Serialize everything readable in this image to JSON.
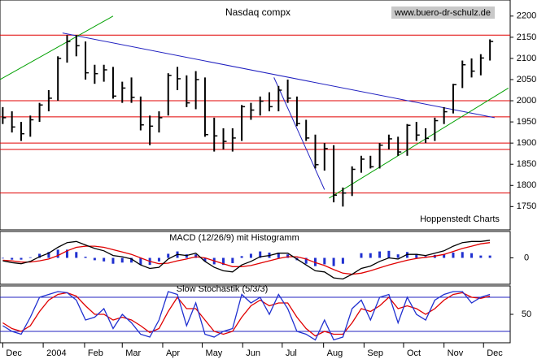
{
  "chart_data": [
    {
      "type": "ohlc",
      "title": "Nasdaq compx",
      "watermark": "www.buero-dr-schulz.de",
      "annotation": "Hoppenstedt Charts",
      "color": "#000000",
      "high": [
        1985,
        1975,
        1950,
        1965,
        1995,
        2025,
        2105,
        2155,
        2155,
        2140,
        2085,
        2085,
        2080,
        2045,
        2055,
        2010,
        1965,
        1975,
        2065,
        2080,
        2060,
        2070,
        2055,
        1960,
        1935,
        1935,
        1990,
        1995,
        2010,
        2020,
        2035,
        2050,
        2010,
        1955,
        1920,
        1900,
        1895,
        1795,
        1845,
        1870,
        1870,
        1900,
        1920,
        1915,
        1945,
        1950,
        1935,
        1960,
        1985,
        2040,
        2095,
        2100,
        2110,
        2145
      ],
      "low": [
        1945,
        1925,
        1905,
        1915,
        1950,
        1975,
        2000,
        2090,
        2105,
        2050,
        2040,
        2045,
        2005,
        1995,
        1995,
        1930,
        1895,
        1925,
        1965,
        2025,
        1985,
        1980,
        1915,
        1880,
        1885,
        1880,
        1905,
        1955,
        1965,
        1975,
        1975,
        1995,
        1940,
        1905,
        1840,
        1835,
        1760,
        1750,
        1775,
        1830,
        1840,
        1840,
        1885,
        1870,
        1870,
        1905,
        1900,
        1905,
        1945,
        1970,
        2030,
        2055,
        2060,
        2095
      ],
      "close": [
        1960,
        1938,
        1922,
        1955,
        1990,
        2006,
        2100,
        2140,
        2130,
        2066,
        2064,
        2073,
        2011,
        2030,
        2008,
        1943,
        1940,
        1960,
        2060,
        2052,
        1995,
        2050,
        1920,
        1917,
        1904,
        1912,
        1986,
        1978,
        1999,
        1986,
        2025,
        2006,
        1946,
        1912,
        1849,
        1887,
        1777,
        1782,
        1838,
        1862,
        1844,
        1895,
        1910,
        1879,
        1942,
        1919,
        1911,
        1953,
        1974,
        2038,
        2085,
        2070,
        2101,
        2140
      ],
      "ylim": [
        1695,
        2238
      ],
      "yticks": [
        1750,
        1800,
        1850,
        1900,
        1950,
        2000,
        2050,
        2100,
        2150,
        2200
      ],
      "hlines": [
        2155,
        2000,
        1962,
        1900,
        1885,
        1782
      ],
      "hline_color": "#e00000",
      "trendlines": [
        {
          "color": "#2020c0",
          "x": [
            6.5,
            53.5
          ],
          "y": [
            2160,
            1960
          ]
        },
        {
          "color": "#2020c0",
          "x": [
            29.5,
            35
          ],
          "y": [
            2055,
            1790
          ]
        },
        {
          "color": "#00a000",
          "x": [
            35.5,
            55
          ],
          "y": [
            1770,
            2030
          ]
        },
        {
          "color": "#00a000",
          "x": [
            -0.3,
            12
          ],
          "y": [
            2050,
            2200
          ]
        }
      ]
    },
    {
      "type": "macd",
      "label": "MACD (12/26/9) mit Histogramm",
      "macd": [
        -5,
        -8,
        -10,
        -6,
        2,
        8,
        18,
        26,
        28,
        22,
        16,
        12,
        4,
        2,
        -2,
        -12,
        -18,
        -16,
        -2,
        6,
        4,
        8,
        -6,
        -16,
        -22,
        -24,
        -12,
        -6,
        2,
        4,
        8,
        8,
        -2,
        -12,
        -22,
        -24,
        -34,
        -36,
        -28,
        -18,
        -14,
        -6,
        0,
        -2,
        6,
        6,
        4,
        8,
        12,
        20,
        26,
        28,
        28,
        30
      ],
      "signal": [
        -4,
        -5,
        -7,
        -7,
        -5,
        -2,
        4,
        12,
        18,
        20,
        20,
        18,
        14,
        10,
        6,
        0,
        -6,
        -10,
        -9,
        -5,
        -2,
        2,
        0,
        -5,
        -10,
        -15,
        -15,
        -13,
        -9,
        -5,
        -1,
        2,
        2,
        -2,
        -8,
        -13,
        -20,
        -26,
        -28,
        -26,
        -22,
        -17,
        -12,
        -8,
        -4,
        -1,
        1,
        3,
        6,
        11,
        16,
        20,
        24,
        26
      ],
      "histogram": [
        -1,
        -3,
        -3,
        1,
        7,
        10,
        14,
        14,
        10,
        2,
        -4,
        -6,
        -10,
        -8,
        -8,
        -12,
        -12,
        -6,
        7,
        11,
        6,
        6,
        -6,
        -11,
        -12,
        -9,
        3,
        7,
        11,
        9,
        9,
        6,
        -4,
        -10,
        -14,
        -11,
        -14,
        -10,
        0,
        8,
        8,
        11,
        12,
        6,
        10,
        7,
        3,
        5,
        6,
        9,
        10,
        8,
        4,
        4
      ],
      "colors": {
        "macd": "#000000",
        "signal": "#e00000",
        "histogram": "#2030d0"
      },
      "ylim": [
        -45,
        45
      ],
      "yticks": [
        0
      ]
    },
    {
      "type": "stochastic",
      "label": "Slow Stochastik (5/3/3)",
      "k": [
        30,
        20,
        15,
        45,
        80,
        85,
        90,
        88,
        75,
        40,
        45,
        60,
        25,
        50,
        35,
        15,
        10,
        40,
        90,
        85,
        30,
        70,
        15,
        10,
        20,
        25,
        85,
        70,
        80,
        50,
        85,
        60,
        20,
        15,
        5,
        40,
        5,
        10,
        60,
        75,
        40,
        80,
        85,
        35,
        80,
        50,
        40,
        75,
        85,
        90,
        90,
        70,
        80,
        85
      ],
      "d": [
        35,
        25,
        20,
        30,
        55,
        75,
        85,
        88,
        82,
        65,
        50,
        50,
        40,
        45,
        40,
        30,
        18,
        25,
        55,
        80,
        60,
        60,
        40,
        20,
        15,
        20,
        45,
        65,
        75,
        65,
        70,
        70,
        45,
        25,
        12,
        20,
        15,
        15,
        35,
        60,
        55,
        65,
        80,
        60,
        65,
        60,
        50,
        60,
        75,
        85,
        88,
        80,
        78,
        82
      ],
      "colors": {
        "k": "#2030d0",
        "d": "#e00000"
      },
      "ylim": [
        0,
        100
      ],
      "yticks": [
        50
      ],
      "hlines": [
        80,
        20
      ],
      "hline_color": "#2020c0",
      "xlim": [
        -0.3,
        55.2
      ],
      "xticks": [
        {
          "value": 0,
          "label": "Dec"
        },
        {
          "value": 4.4,
          "label": "2004"
        },
        {
          "value": 8.9,
          "label": "Feb"
        },
        {
          "value": 13.0,
          "label": "Mar"
        },
        {
          "value": 17.4,
          "label": "Apr"
        },
        {
          "value": 21.7,
          "label": "May"
        },
        {
          "value": 26.1,
          "label": "Jun"
        },
        {
          "value": 30.4,
          "label": "Jul"
        },
        {
          "value": 34.9,
          "label": "Aug"
        },
        {
          "value": 39.3,
          "label": "Sep"
        },
        {
          "value": 43.6,
          "label": "Oct"
        },
        {
          "value": 48.0,
          "label": "Nov"
        },
        {
          "value": 52.3,
          "label": "Dec"
        }
      ]
    }
  ]
}
